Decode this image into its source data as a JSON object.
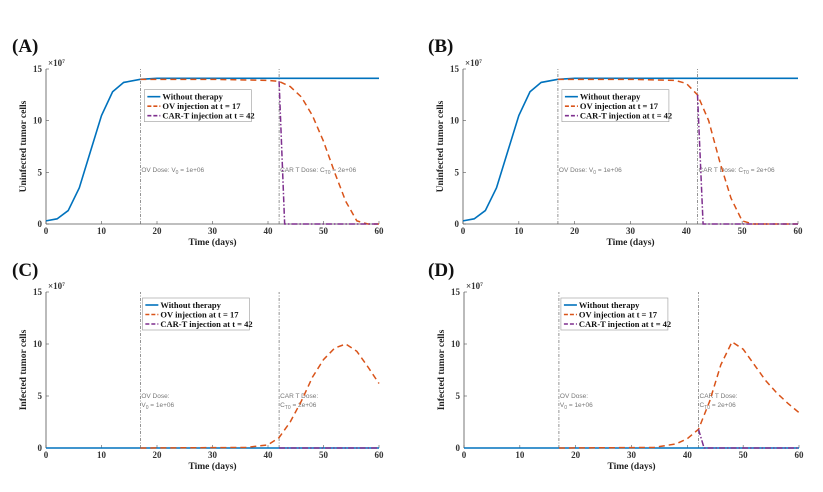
{
  "chart_data": [
    {
      "panel_label": "(A)",
      "type": "line",
      "xlabel": "Time (days)",
      "ylabel": "Uninfected tumor cells",
      "y_exponent": "×10^7",
      "xlim": [
        0,
        60
      ],
      "ylim": [
        0,
        15
      ],
      "xticks": [
        0,
        10,
        20,
        30,
        40,
        50,
        60
      ],
      "yticks": [
        0,
        5,
        10,
        15
      ],
      "annotations": [
        {
          "x": 17,
          "text": "OV Dose: V_0 = 1e+06"
        },
        {
          "x": 42,
          "text": "CAR T Dose: C_T0 = 2e+06"
        }
      ],
      "series": [
        {
          "name": "Without therapy",
          "color": "#0072BD",
          "style": "solid",
          "x": [
            0,
            2,
            4,
            6,
            8,
            10,
            12,
            14,
            17,
            20,
            60
          ],
          "y": [
            0.3,
            0.5,
            1.3,
            3.5,
            7,
            10.5,
            12.8,
            13.7,
            14,
            14.1,
            14.1
          ]
        },
        {
          "name": "OV injection at t = 17",
          "color": "#D95319",
          "style": "dashed",
          "x": [
            17,
            30,
            40,
            42,
            44,
            46,
            48,
            50,
            52,
            54,
            56,
            58,
            60
          ],
          "y": [
            14,
            14,
            13.9,
            13.8,
            13.3,
            12.3,
            10.5,
            8,
            5,
            2.2,
            0.3,
            0,
            0
          ]
        },
        {
          "name": "CAR-T injection at t = 42",
          "color": "#7E2F8E",
          "style": "dashdot",
          "x": [
            42,
            43,
            60
          ],
          "y": [
            13.8,
            0,
            0
          ]
        }
      ]
    },
    {
      "panel_label": "(B)",
      "type": "line",
      "xlabel": "Time (days)",
      "ylabel": "Uninfected tumor cells",
      "y_exponent": "×10^7",
      "xlim": [
        0,
        60
      ],
      "ylim": [
        0,
        15
      ],
      "xticks": [
        0,
        10,
        20,
        30,
        40,
        50,
        60
      ],
      "yticks": [
        0,
        5,
        10,
        15
      ],
      "annotations": [
        {
          "x": 17,
          "text": "OV Dose: V_0 = 1e+06"
        },
        {
          "x": 42,
          "text": "CAR T Dose: C_T0 = 2e+06"
        }
      ],
      "series": [
        {
          "name": "Without therapy",
          "color": "#0072BD",
          "style": "solid",
          "x": [
            0,
            2,
            4,
            6,
            8,
            10,
            12,
            14,
            17,
            20,
            60
          ],
          "y": [
            0.3,
            0.5,
            1.3,
            3.5,
            7,
            10.5,
            12.8,
            13.7,
            14,
            14.1,
            14.1
          ]
        },
        {
          "name": "OV injection at t = 17",
          "color": "#D95319",
          "style": "dashed",
          "x": [
            17,
            30,
            38,
            40,
            42,
            44,
            46,
            48,
            50,
            52,
            60
          ],
          "y": [
            14,
            14,
            13.9,
            13.6,
            12.5,
            10,
            6,
            2.5,
            0.3,
            0,
            0
          ]
        },
        {
          "name": "CAR-T injection at t = 42",
          "color": "#7E2F8E",
          "style": "dashdot",
          "x": [
            42,
            43,
            60
          ],
          "y": [
            12.5,
            0,
            0
          ]
        }
      ]
    },
    {
      "panel_label": "(C)",
      "type": "line",
      "xlabel": "Time (days)",
      "ylabel": "Infected tumor cells",
      "y_exponent": "×10^7",
      "xlim": [
        0,
        60
      ],
      "ylim": [
        0,
        15
      ],
      "xticks": [
        0,
        10,
        20,
        30,
        40,
        50,
        60
      ],
      "yticks": [
        0,
        5,
        10,
        15
      ],
      "annotations": [
        {
          "x": 17,
          "text": "OV Dose:",
          "text2": "V_0 = 1e+06"
        },
        {
          "x": 42,
          "text": "CAR T Dose:",
          "text2": "C_T0 = 2e+06"
        }
      ],
      "series": [
        {
          "name": "Without therapy",
          "color": "#0072BD",
          "style": "solid",
          "x": [
            0,
            60
          ],
          "y": [
            0,
            0
          ]
        },
        {
          "name": "OV injection at t = 17",
          "color": "#D95319",
          "style": "dashed",
          "x": [
            17,
            36,
            40,
            42,
            44,
            46,
            48,
            50,
            52,
            54,
            56,
            58,
            60
          ],
          "y": [
            0,
            0.05,
            0.3,
            1,
            2.5,
            4.5,
            6.8,
            8.5,
            9.6,
            10,
            9.3,
            7.8,
            6.2
          ]
        },
        {
          "name": "CAR-T injection at t = 42",
          "color": "#7E2F8E",
          "style": "dashdot",
          "x": [
            42,
            60
          ],
          "y": [
            0,
            0
          ]
        }
      ]
    },
    {
      "panel_label": "(D)",
      "type": "line",
      "xlabel": "Time (days)",
      "ylabel": "Infected tumor cells",
      "y_exponent": "×10^7",
      "xlim": [
        0,
        60
      ],
      "ylim": [
        0,
        15
      ],
      "xticks": [
        0,
        10,
        20,
        30,
        40,
        50,
        60
      ],
      "yticks": [
        0,
        5,
        10,
        15
      ],
      "annotations": [
        {
          "x": 17,
          "text": "OV Dose:",
          "text2": "V_0 = 1e+06"
        },
        {
          "x": 42,
          "text": "CAR T Dose:",
          "text2": "C_T0 = 2e+06"
        }
      ],
      "series": [
        {
          "name": "Without therapy",
          "color": "#0072BD",
          "style": "solid",
          "x": [
            0,
            60
          ],
          "y": [
            0,
            0
          ]
        },
        {
          "name": "OV injection at t = 17",
          "color": "#D95319",
          "style": "dashed",
          "x": [
            17,
            34,
            38,
            40,
            42,
            44,
            46,
            48,
            50,
            52,
            54,
            56,
            58,
            60
          ],
          "y": [
            0,
            0.05,
            0.4,
            0.9,
            1.8,
            4.5,
            8,
            10.2,
            9.5,
            8,
            6.5,
            5.3,
            4.3,
            3.4
          ]
        },
        {
          "name": "CAR-T injection at t = 42",
          "color": "#7E2F8E",
          "style": "dashdot",
          "x": [
            42,
            43,
            60
          ],
          "y": [
            1.8,
            0,
            0
          ]
        }
      ]
    }
  ]
}
